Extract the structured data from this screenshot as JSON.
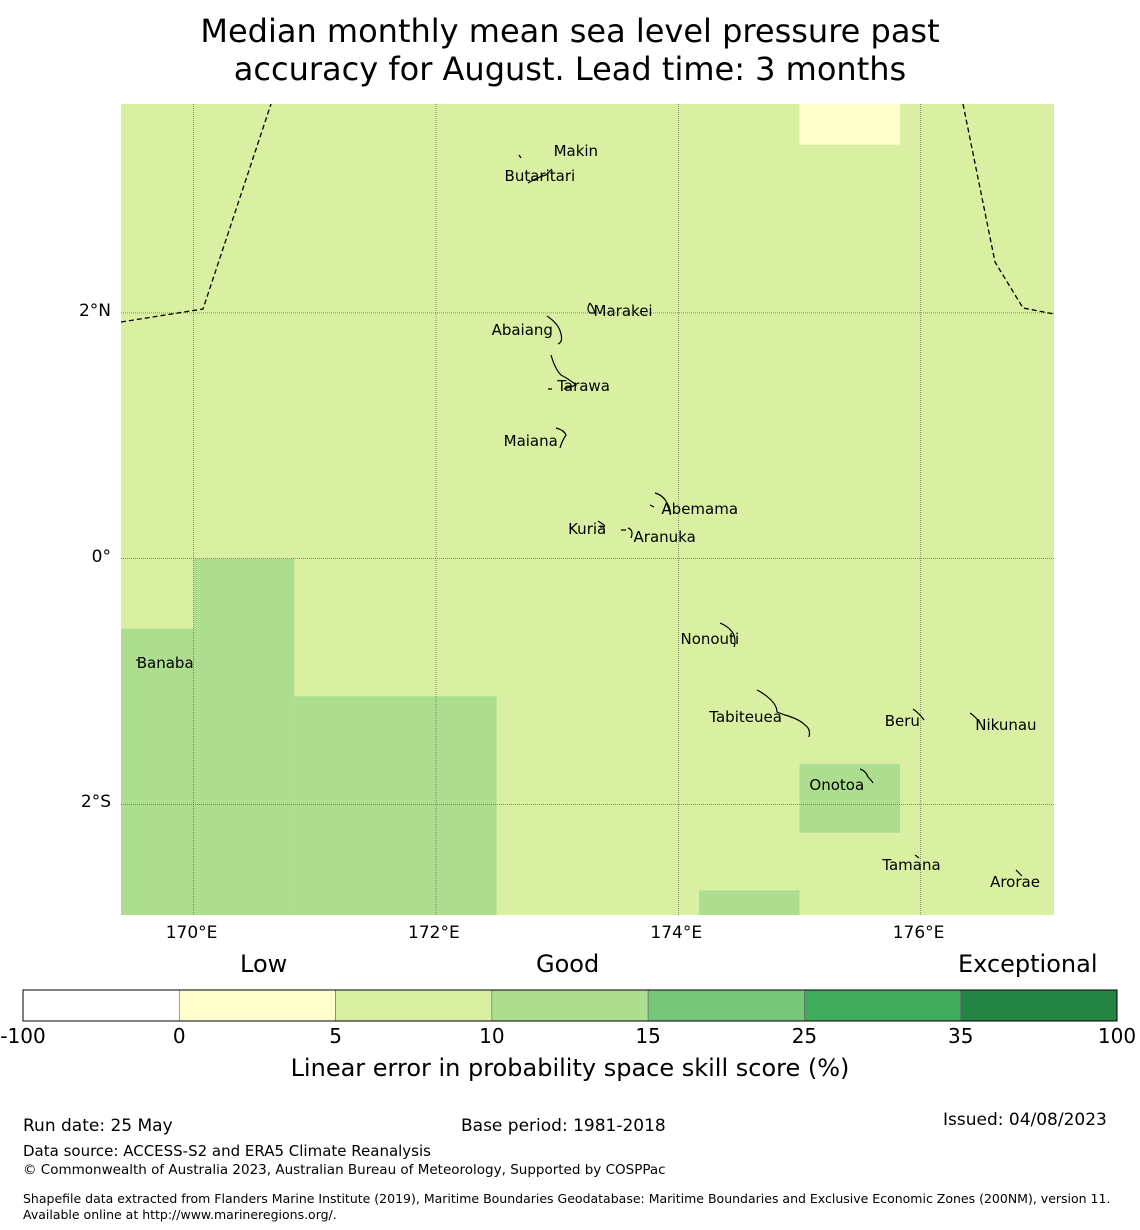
{
  "title": {
    "line1": "Median monthly mean sea level pressure past",
    "line2": "accuracy for August. Lead time: 3 months"
  },
  "map": {
    "lon_range": [
      169.4,
      177.1
    ],
    "lat_range": [
      -2.9,
      3.7
    ],
    "gridlines": true,
    "background_category_color": "#d9f0a3",
    "lon_ticks": [
      {
        "value": 170,
        "label": "170°E"
      },
      {
        "value": 172,
        "label": "172°E"
      },
      {
        "value": 174,
        "label": "174°E"
      },
      {
        "value": 176,
        "label": "176°E"
      }
    ],
    "lat_ticks": [
      {
        "value": 2,
        "label": "2°N"
      },
      {
        "value": 0,
        "label": "0°"
      },
      {
        "value": -2,
        "label": "2°S"
      }
    ],
    "cells": [
      {
        "lon0": 175.0,
        "lon1": 175.83,
        "lat0": 3.37,
        "lat1": 3.7,
        "color": "#ffffcc"
      },
      {
        "lon0": 170.0,
        "lon1": 170.83,
        "lat0": -2.9,
        "lat1": 0.0,
        "color": "#addd8e"
      },
      {
        "lon0": 169.4,
        "lon1": 170.0,
        "lat0": -2.9,
        "lat1": -0.57,
        "color": "#addd8e"
      },
      {
        "lon0": 170.83,
        "lon1": 172.5,
        "lat0": -2.9,
        "lat1": -1.12,
        "color": "#addd8e"
      },
      {
        "lon0": 175.0,
        "lon1": 175.83,
        "lat0": -2.23,
        "lat1": -1.67,
        "color": "#addd8e"
      },
      {
        "lon0": 174.17,
        "lon1": 175.0,
        "lat0": -2.9,
        "lat1": -2.7,
        "color": "#addd8e"
      }
    ],
    "islands": [
      {
        "name": "Makin",
        "lon": 172.97,
        "lat": 3.31
      },
      {
        "name": "Butaritari",
        "lon": 172.78,
        "lat": 3.09
      },
      {
        "name": "Marakei",
        "lon": 173.3,
        "lat": 2.01
      },
      {
        "name": "Abaiang",
        "lon": 172.97,
        "lat": 1.85
      },
      {
        "name": "Tarawa",
        "lon": 173.0,
        "lat": 1.4
      },
      {
        "name": "Maiana",
        "lon": 173.02,
        "lat": 0.95
      },
      {
        "name": "Abemama",
        "lon": 173.86,
        "lat": 0.4
      },
      {
        "name": "Kuria",
        "lon": 173.42,
        "lat": 0.23
      },
      {
        "name": "Aranuka",
        "lon": 173.63,
        "lat": 0.17
      },
      {
        "name": "Nonouti",
        "lon": 174.43,
        "lat": -0.66
      },
      {
        "name": "Banaba",
        "lon": 169.53,
        "lat": -0.86
      },
      {
        "name": "Tabiteuea",
        "lon": 174.8,
        "lat": -1.3
      },
      {
        "name": "Beru",
        "lon": 176.0,
        "lat": -1.33
      },
      {
        "name": "Nikunau",
        "lon": 176.45,
        "lat": -1.36
      },
      {
        "name": "Onotoa",
        "lon": 175.56,
        "lat": -1.85
      },
      {
        "name": "Tamana",
        "lon": 175.98,
        "lat": -2.5
      },
      {
        "name": "Arorae",
        "lon": 176.82,
        "lat": -2.64
      }
    ]
  },
  "colorbar": {
    "category_words": [
      "Low",
      "Good",
      "Exceptional"
    ],
    "ticks": [
      "-100",
      "0",
      "5",
      "10",
      "15",
      "25",
      "35",
      "100"
    ],
    "colors": [
      "#ffffff",
      "#ffffcc",
      "#d9f0a3",
      "#addd8e",
      "#78c679",
      "#41ab5d",
      "#238443"
    ],
    "label": "Linear error in probability space skill score (%)"
  },
  "footer": {
    "run_date": "Run date: 25 May",
    "base_period": "Base period: 1981-2018",
    "issued": "Issued: 04/08/2023",
    "data_source": "Data source: ACCESS-S2 and ERA5 Climate Reanalysis",
    "copyright": "© Commonwealth of Australia 2023, Australian Bureau of Meteorology, Supported by COSPPac",
    "shapefile": "Shapefile data extracted from Flanders Marine Institute (2019), Maritime Boundaries Geodatabase: Maritime Boundaries and Exclusive Economic Zones (200NM), version 11. Available online at http://www.marineregions.org/."
  }
}
